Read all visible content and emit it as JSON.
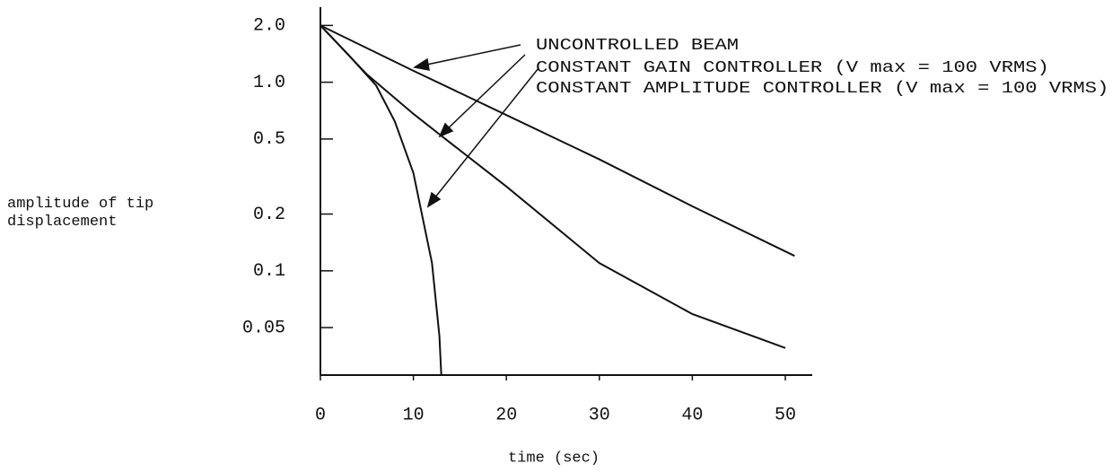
{
  "chart_data": {
    "type": "line",
    "xlabel": "time (sec)",
    "ylabel": "amplitude of tip displacement",
    "xlim": [
      0,
      53
    ],
    "xticks": [
      0,
      10,
      20,
      30,
      40,
      50
    ],
    "ylim": [
      0.028,
      2.5
    ],
    "log_y": true,
    "yticks": [
      {
        "value": 2,
        "label": "2.0"
      },
      {
        "value": 1,
        "label": "1.0"
      },
      0.5,
      0.2,
      0.1,
      0.05
    ],
    "series": [
      {
        "name": "UNCONTROLLED BEAM",
        "color": "#111111",
        "x": [
          0,
          10,
          20,
          30,
          40,
          51
        ],
        "values": [
          2.0,
          1.15,
          0.67,
          0.39,
          0.22,
          0.12
        ]
      },
      {
        "name": "CONSTANT GAIN CONTROLLER (V max = 100 VRMS)",
        "color": "#111111",
        "x": [
          0,
          5,
          10,
          13,
          20,
          30,
          40,
          50
        ],
        "values": [
          2.0,
          1.1,
          0.68,
          0.52,
          0.28,
          0.11,
          0.059,
          0.039
        ]
      },
      {
        "name": "CONSTANT AMPLITUDE CONTROLLER (V max = 100 VRMS)",
        "color": "#111111",
        "x": [
          0,
          3,
          6,
          8,
          10,
          12,
          12.8,
          13
        ],
        "values": [
          2.0,
          1.4,
          0.96,
          0.62,
          0.33,
          0.11,
          0.045,
          0.028
        ]
      }
    ]
  }
}
